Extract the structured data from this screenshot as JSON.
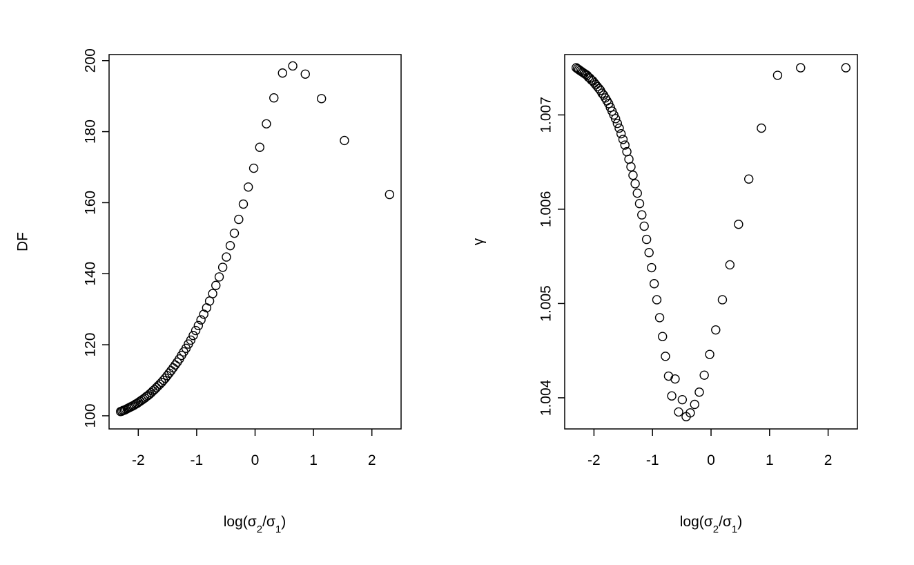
{
  "chart_data": [
    {
      "type": "scatter",
      "xlabel": {
        "base": "log(σ",
        "sub1": "2",
        "mid": "/σ",
        "sub2": "1",
        "end": ")"
      },
      "ylabel": "DF",
      "xlim": [
        -2.5,
        2.5
      ],
      "ylim": [
        96.3,
        201.7
      ],
      "xticks": [
        -2,
        -1,
        0,
        1,
        2
      ],
      "xtick_labels": [
        "-2",
        "-1",
        "0",
        "1",
        "2"
      ],
      "yticks": [
        100,
        120,
        140,
        160,
        180,
        200
      ],
      "ytick_labels": [
        "100",
        "120",
        "140",
        "160",
        "180",
        "200"
      ],
      "x": [
        -2.303,
        -2.281,
        -2.259,
        -2.236,
        -2.213,
        -2.19,
        -2.166,
        -2.142,
        -2.118,
        -2.094,
        -2.069,
        -2.044,
        -2.019,
        -1.994,
        -1.968,
        -1.942,
        -1.915,
        -1.889,
        -1.862,
        -1.834,
        -1.806,
        -1.778,
        -1.749,
        -1.72,
        -1.691,
        -1.661,
        -1.631,
        -1.6,
        -1.569,
        -1.537,
        -1.504,
        -1.471,
        -1.438,
        -1.403,
        -1.368,
        -1.333,
        -1.296,
        -1.259,
        -1.221,
        -1.182,
        -1.142,
        -1.101,
        -1.059,
        -1.016,
        -0.971,
        -0.926,
        -0.878,
        -0.829,
        -0.779,
        -0.726,
        -0.671,
        -0.614,
        -0.554,
        -0.491,
        -0.425,
        -0.355,
        -0.28,
        -0.201,
        -0.116,
        -0.023,
        0.08,
        0.194,
        0.322,
        0.47,
        0.645,
        0.86,
        1.137,
        1.53,
        2.303
      ],
      "y": [
        101.2,
        101.3,
        101.5,
        101.6,
        101.8,
        102.0,
        102.2,
        102.4,
        102.6,
        102.8,
        103.0,
        103.3,
        103.5,
        103.8,
        104.1,
        104.4,
        104.7,
        105.0,
        105.4,
        105.7,
        106.1,
        106.5,
        107.0,
        107.4,
        107.9,
        108.4,
        108.9,
        109.4,
        110.0,
        110.6,
        111.3,
        112.0,
        112.7,
        113.5,
        114.3,
        115.1,
        116.0,
        117.0,
        118.0,
        119.0,
        120.2,
        121.3,
        122.6,
        124.0,
        125.4,
        127.0,
        128.6,
        130.4,
        132.3,
        134.4,
        136.7,
        139.1,
        141.8,
        144.7,
        147.9,
        151.4,
        155.3,
        159.6,
        164.4,
        169.7,
        175.6,
        182.2,
        189.5,
        196.5,
        198.5,
        196.2,
        189.3,
        177.5,
        162.3
      ]
    },
    {
      "type": "scatter",
      "xlabel": {
        "base": "log(σ",
        "sub1": "2",
        "mid": "/σ",
        "sub2": "1",
        "end": ")"
      },
      "ylabel": "γ",
      "xlim": [
        -2.5,
        2.5
      ],
      "ylim": [
        1.00367,
        1.00764
      ],
      "xticks": [
        -2,
        -1,
        0,
        1,
        2
      ],
      "xtick_labels": [
        "-2",
        "-1",
        "0",
        "1",
        "2"
      ],
      "yticks": [
        1.004,
        1.005,
        1.006,
        1.007
      ],
      "ytick_labels": [
        "1.004",
        "1.005",
        "1.006",
        "1.007"
      ],
      "x": [
        -2.303,
        -2.281,
        -2.259,
        -2.236,
        -2.213,
        -2.19,
        -2.166,
        -2.142,
        -2.118,
        -2.094,
        -2.069,
        -2.044,
        -2.019,
        -1.994,
        -1.968,
        -1.942,
        -1.915,
        -1.889,
        -1.862,
        -1.834,
        -1.806,
        -1.778,
        -1.749,
        -1.72,
        -1.691,
        -1.661,
        -1.631,
        -1.6,
        -1.569,
        -1.537,
        -1.504,
        -1.471,
        -1.438,
        -1.403,
        -1.368,
        -1.333,
        -1.296,
        -1.259,
        -1.221,
        -1.182,
        -1.142,
        -1.101,
        -1.059,
        -1.016,
        -0.971,
        -0.926,
        -0.878,
        -0.829,
        -0.779,
        -0.726,
        -0.671,
        -0.614,
        -0.554,
        -0.491,
        -0.425,
        -0.355,
        -0.28,
        -0.201,
        -0.116,
        -0.023,
        0.08,
        0.194,
        0.322,
        0.47,
        0.645,
        0.86,
        1.137,
        1.53,
        2.303
      ],
      "y": [
        1.0075,
        1.00749,
        1.00748,
        1.00747,
        1.00746,
        1.00745,
        1.00744,
        1.00743,
        1.00742,
        1.0074,
        1.00739,
        1.00737,
        1.00736,
        1.00734,
        1.00732,
        1.0073,
        1.00728,
        1.00726,
        1.00723,
        1.00721,
        1.00718,
        1.00715,
        1.00712,
        1.00708,
        1.00704,
        1.007,
        1.00696,
        1.00691,
        1.00686,
        1.0068,
        1.00674,
        1.00668,
        1.00661,
        1.00653,
        1.00645,
        1.00636,
        1.00627,
        1.00617,
        1.00606,
        1.00594,
        1.00582,
        1.00568,
        1.00554,
        1.00538,
        1.00521,
        1.00504,
        1.00485,
        1.00465,
        1.00444,
        1.00423,
        1.00402,
        1.0042,
        1.00385,
        1.00398,
        1.0038,
        1.00384,
        1.00393,
        1.00406,
        1.00424,
        1.00446,
        1.00472,
        1.00504,
        1.00541,
        1.00584,
        1.00632,
        1.00686,
        1.00742,
        1.0075,
        1.0075
      ]
    }
  ]
}
